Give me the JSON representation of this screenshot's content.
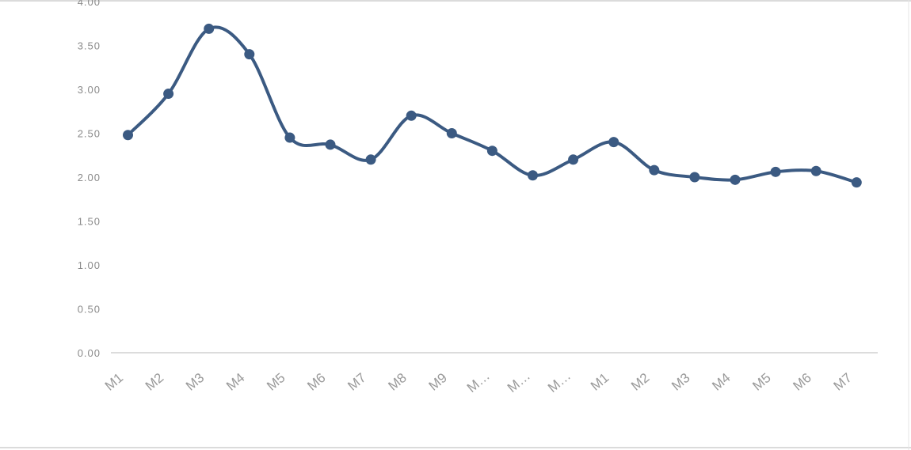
{
  "colors": {
    "series": "#3b5a82",
    "axis": "#d0d0d0",
    "frame": "#cfcfcf",
    "tick_text": "#8a8a8a"
  },
  "chart_data": {
    "type": "line",
    "title": "",
    "xlabel": "",
    "ylabel": "",
    "ylim": [
      0,
      4
    ],
    "y_ticks": [
      "0.00",
      "0.50",
      "1.00",
      "1.50",
      "2.00",
      "2.50",
      "3.00",
      "3.50",
      "4.00"
    ],
    "grid": false,
    "categories": [
      "M1",
      "M2",
      "M3",
      "M4",
      "M5",
      "M6",
      "M7",
      "M8",
      "M9",
      "M…",
      "M…",
      "M…",
      "M1",
      "M2",
      "M3",
      "M4",
      "M5",
      "M6",
      "M7"
    ],
    "series": [
      {
        "values": [
          2.48,
          2.95,
          3.69,
          3.4,
          2.45,
          2.37,
          2.2,
          2.7,
          2.5,
          2.3,
          2.02,
          2.2,
          2.4,
          2.08,
          2.0,
          1.97,
          2.06,
          2.07,
          1.94
        ]
      }
    ]
  }
}
